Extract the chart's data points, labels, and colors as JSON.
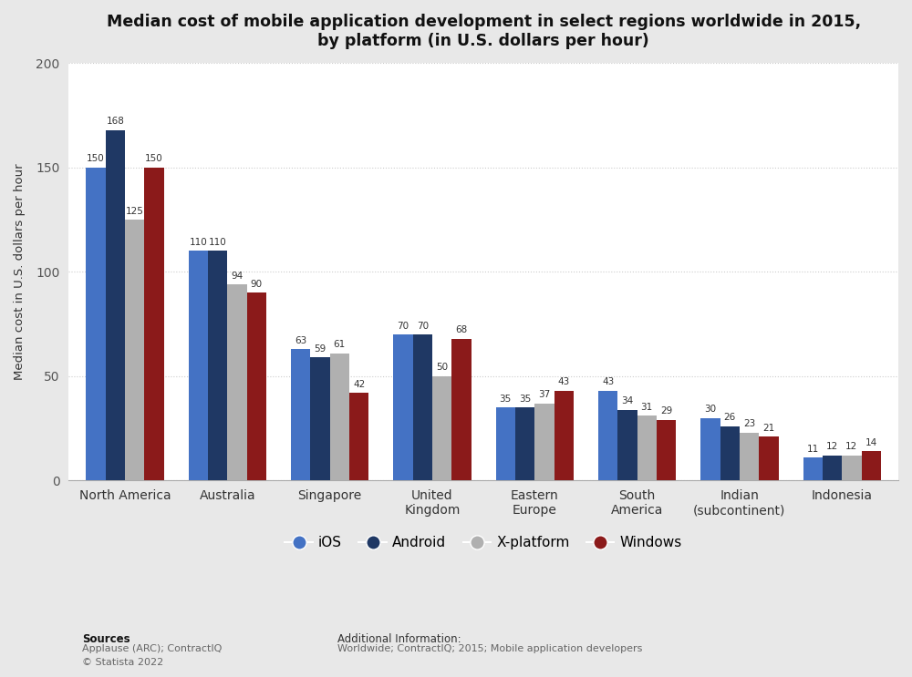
{
  "title": "Median cost of mobile application development in select regions worldwide in 2015,\nby platform (in U.S. dollars per hour)",
  "ylabel": "Median cost in U.S. dollars per hour",
  "categories": [
    "North America",
    "Australia",
    "Singapore",
    "United\nKingdom",
    "Eastern\nEurope",
    "South\nAmerica",
    "Indian\n(subcontinent)",
    "Indonesia"
  ],
  "platforms": [
    "iOS",
    "Android",
    "X-platform",
    "Windows"
  ],
  "colors": [
    "#4472C4",
    "#1F3864",
    "#B0B0B0",
    "#8B1A1A"
  ],
  "data": {
    "iOS": [
      150,
      110,
      63,
      70,
      35,
      43,
      30,
      11
    ],
    "Android": [
      168,
      110,
      59,
      70,
      35,
      34,
      26,
      12
    ],
    "X-platform": [
      125,
      94,
      61,
      50,
      37,
      31,
      23,
      12
    ],
    "Windows": [
      150,
      90,
      42,
      68,
      43,
      29,
      21,
      14
    ]
  },
  "ylim": [
    0,
    200
  ],
  "yticks": [
    0,
    50,
    100,
    150,
    200
  ],
  "outer_background": "#e8e8e8",
  "plot_background": "#ffffff",
  "grid_color": "#cccccc",
  "bar_width": 0.19,
  "label_fontsize": 7.5,
  "source_text_bold": "Sources",
  "source_text": "Applause (ARC); ContractIQ\n© Statista 2022",
  "additional_info_bold": "Additional Information:",
  "additional_info": "Worldwide; ContractIQ; 2015; Mobile application developers"
}
